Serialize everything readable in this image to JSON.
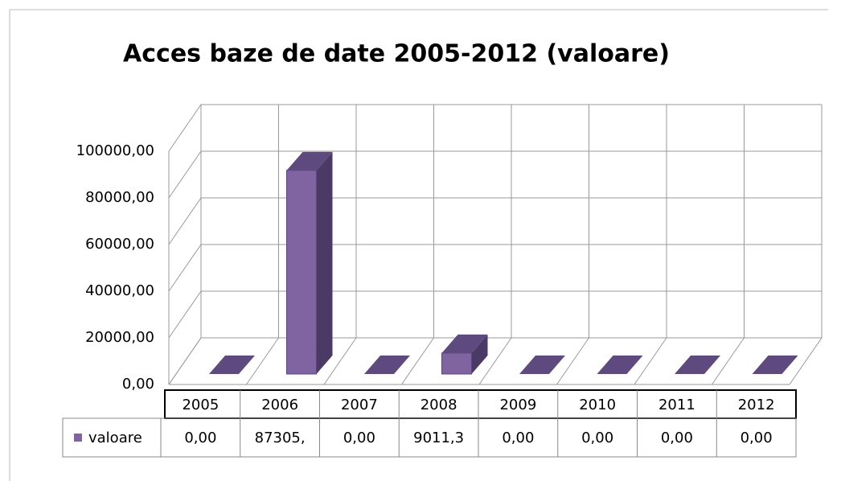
{
  "chart_data": {
    "type": "bar3d",
    "title": "Acces baze de date 2005-2012 (valoare)",
    "categories": [
      "2005",
      "2006",
      "2007",
      "2008",
      "2009",
      "2010",
      "2011",
      "2012"
    ],
    "series": [
      {
        "name": "valoare",
        "color": "#8064a2",
        "values": [
          0,
          87305,
          0,
          9011.3,
          0,
          0,
          0,
          0
        ],
        "value_labels": [
          "0,00",
          "87305,",
          "0,00",
          "9011,3",
          "0,00",
          "0,00",
          "0,00",
          "0,00"
        ]
      }
    ],
    "ylim": [
      0,
      100000
    ],
    "yticks": [
      {
        "value": 0,
        "label": "0,00"
      },
      {
        "value": 20000,
        "label": "20000,00"
      },
      {
        "value": 40000,
        "label": "40000,00"
      },
      {
        "value": 60000,
        "label": "60000,00"
      },
      {
        "value": 80000,
        "label": "80000,00"
      },
      {
        "value": 100000,
        "label": "100000,00"
      }
    ],
    "grid": true
  }
}
